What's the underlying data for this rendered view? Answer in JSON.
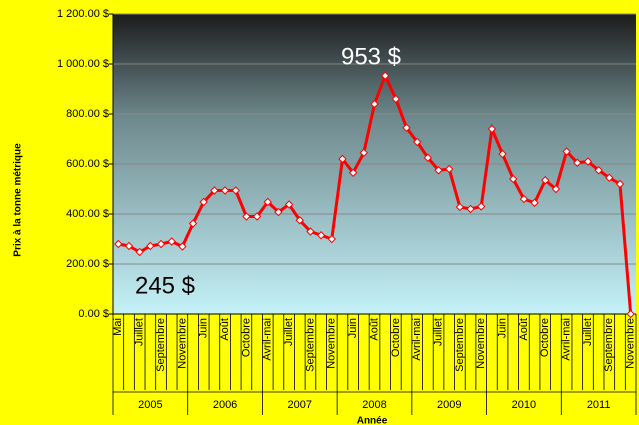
{
  "chart_data": {
    "type": "line",
    "y_label": "Prix à la tonne métrique",
    "x_label": "Année",
    "annotations": [
      "953 $",
      "245 $"
    ],
    "categories": [
      "Mai",
      null,
      "Juillet",
      null,
      "Septembre",
      null,
      "Novembre",
      null,
      "Juin",
      null,
      "Août",
      null,
      "Octobre",
      null,
      "Avril-mai",
      null,
      "Juillet",
      null,
      "Septembre",
      null,
      "Novembre",
      null,
      "Juin",
      null,
      "Août",
      null,
      "Octobre",
      null,
      "Avril-mai",
      null,
      "Juillet",
      null,
      "Septembre",
      null,
      "Novembre",
      null,
      "Juin",
      null,
      "Août",
      null,
      "Octobre",
      null,
      "Avril-mai",
      null,
      "Juillet",
      null,
      "Septembre",
      null,
      "Novembre"
    ],
    "years": [
      "2005",
      "2006",
      "2007",
      "2008",
      "2009",
      "2010",
      "2011"
    ],
    "values": [
      280,
      272,
      248,
      272,
      280,
      290,
      270,
      362,
      448,
      494,
      494,
      494,
      390,
      390,
      448,
      408,
      438,
      375,
      330,
      315,
      300,
      620,
      565,
      645,
      840,
      953,
      860,
      745,
      688,
      625,
      575,
      580,
      428,
      420,
      430,
      740,
      640,
      540,
      460,
      445,
      535,
      500,
      650,
      605,
      610,
      575,
      545,
      520,
      0
    ],
    "color": "#ff0000",
    "ylim": [
      0,
      1200
    ],
    "yticks": [
      {
        "value": 0,
        "label": "0.00 $"
      },
      {
        "value": 200,
        "label": "200.00 $"
      },
      {
        "value": 400,
        "label": "400.00 $"
      },
      {
        "value": 600,
        "label": "600.00 $"
      },
      {
        "value": 800,
        "label": "800.00 $"
      },
      {
        "value": 1000,
        "label": "1 000.00 $"
      },
      {
        "value": 1200,
        "label": "1 200.00 $"
      }
    ],
    "grid": true
  }
}
